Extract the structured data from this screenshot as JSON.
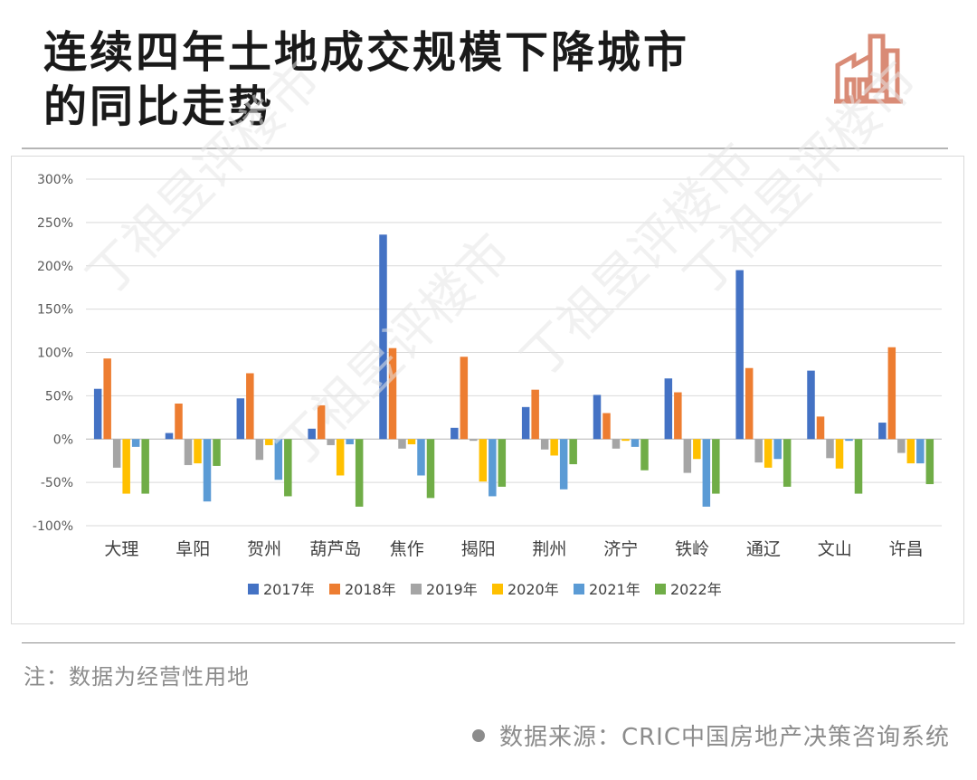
{
  "header": {
    "title_line1": "连续四年土地成交规模下降城市",
    "title_line2": "的同比走势",
    "logo_icon": "factory-icon",
    "logo_color": "#d98b76"
  },
  "chart_data": {
    "type": "bar",
    "title": "",
    "xlabel": "",
    "ylabel": "",
    "ylim": [
      -1.0,
      3.0
    ],
    "yticks": [
      "300%",
      "250%",
      "200%",
      "150%",
      "100%",
      "50%",
      "0%",
      "-50%",
      "-100%"
    ],
    "ytick_values": [
      3.0,
      2.5,
      2.0,
      1.5,
      1.0,
      0.5,
      0.0,
      -0.5,
      -1.0
    ],
    "grid": true,
    "legend_position": "bottom",
    "categories": [
      "大理",
      "阜阳",
      "贺州",
      "葫芦岛",
      "焦作",
      "揭阳",
      "荆州",
      "济宁",
      "铁岭",
      "通辽",
      "文山",
      "许昌"
    ],
    "series": [
      {
        "name": "2017年",
        "color": "#4472c4",
        "values": [
          0.58,
          0.07,
          0.47,
          0.12,
          2.36,
          0.13,
          0.37,
          0.51,
          0.7,
          1.95,
          0.79,
          0.19
        ]
      },
      {
        "name": "2018年",
        "color": "#ed7d31",
        "values": [
          0.93,
          0.41,
          0.76,
          0.39,
          1.05,
          0.95,
          0.57,
          0.3,
          0.54,
          0.82,
          0.26,
          1.06
        ]
      },
      {
        "name": "2019年",
        "color": "#a5a5a5",
        "values": [
          -0.33,
          -0.3,
          -0.24,
          -0.07,
          -0.11,
          -0.02,
          -0.12,
          -0.11,
          -0.39,
          -0.27,
          -0.22,
          -0.16
        ]
      },
      {
        "name": "2020年",
        "color": "#ffc000",
        "values": [
          -0.63,
          -0.28,
          -0.07,
          -0.42,
          -0.06,
          -0.49,
          -0.19,
          -0.02,
          -0.23,
          -0.33,
          -0.34,
          -0.28
        ]
      },
      {
        "name": "2021年",
        "color": "#5b9bd5",
        "values": [
          -0.09,
          -0.72,
          -0.47,
          -0.06,
          -0.42,
          -0.66,
          -0.58,
          -0.09,
          -0.78,
          -0.23,
          -0.02,
          -0.28
        ]
      },
      {
        "name": "2022年",
        "color": "#70ad47",
        "values": [
          -0.63,
          -0.31,
          -0.66,
          -0.78,
          -0.68,
          -0.55,
          -0.29,
          -0.36,
          -0.63,
          -0.55,
          -0.63,
          -0.52
        ]
      }
    ]
  },
  "footer": {
    "note": "注：数据为经营性用地",
    "source": "数据来源：CRIC中国房地产决策咨询系统"
  }
}
